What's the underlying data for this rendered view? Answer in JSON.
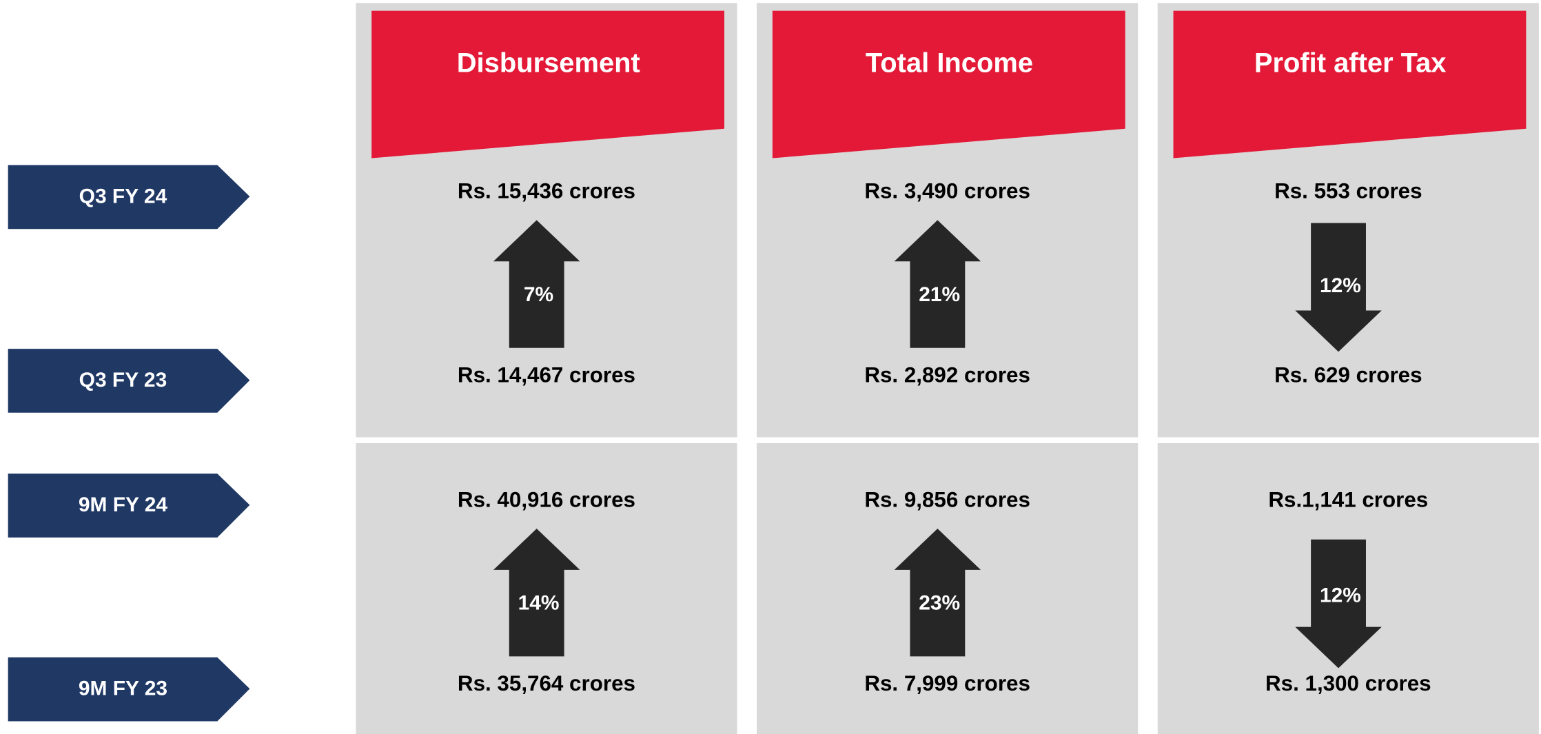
{
  "row_labels": [
    "Q3 FY 24",
    "Q3 FY 23",
    "9M FY 24",
    "9M FY 23"
  ],
  "columns": [
    {
      "title": "Disbursement",
      "quarter": {
        "current": "Rs. 15,436  crores",
        "prior": "Rs. 14,467 crores",
        "change": "7%",
        "direction": "up"
      },
      "nine_months": {
        "current": "Rs. 40,916 crores",
        "prior": "Rs. 35,764 crores",
        "change": "14%",
        "direction": "up"
      }
    },
    {
      "title": "Total Income",
      "quarter": {
        "current": "Rs. 3,490 crores",
        "prior": "Rs. 2,892 crores",
        "change": "21%",
        "direction": "up"
      },
      "nine_months": {
        "current": "Rs. 9,856 crores",
        "prior": "Rs. 7,999 crores",
        "change": "23%",
        "direction": "up"
      }
    },
    {
      "title": "Profit after Tax",
      "quarter": {
        "current": "Rs. 553 crores",
        "prior": "Rs. 629 crores",
        "change": "12%",
        "direction": "down"
      },
      "nine_months": {
        "current": "Rs.1,141 crores",
        "prior": "Rs. 1,300 crores",
        "change": "12%",
        "direction": "down"
      }
    }
  ]
}
